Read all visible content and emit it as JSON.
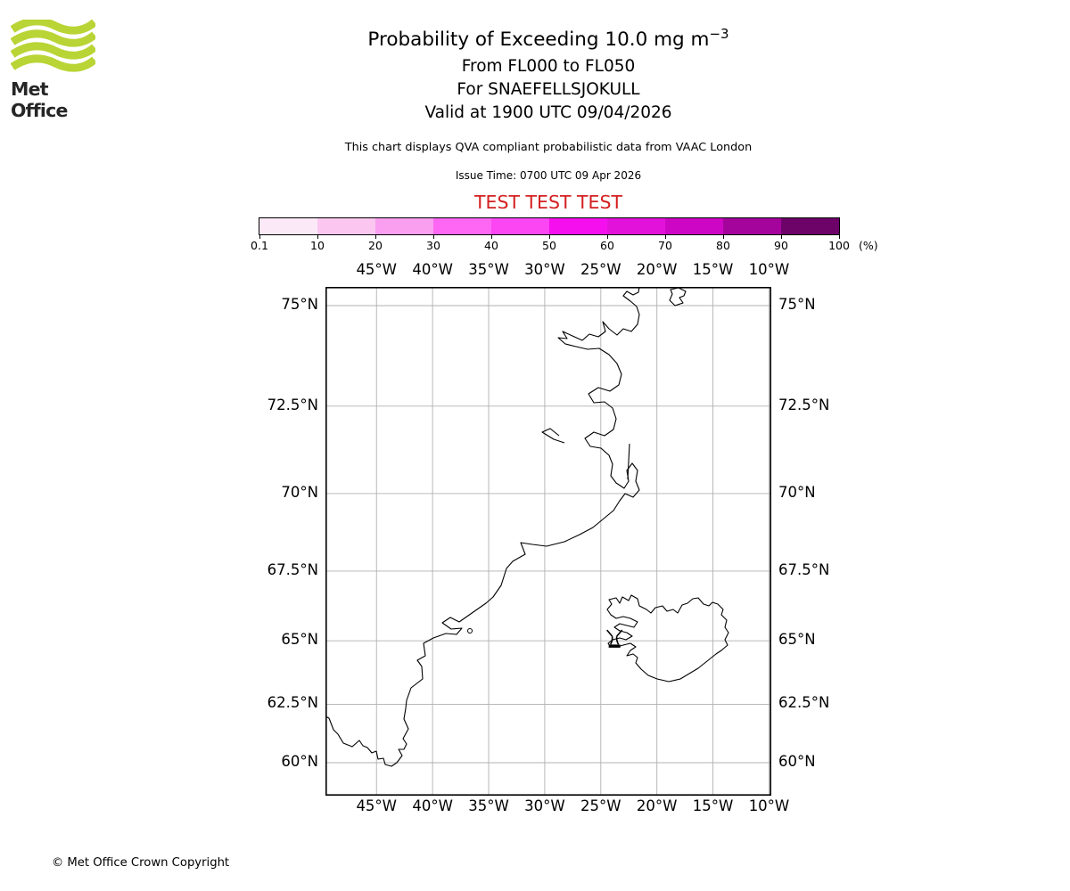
{
  "logo": {
    "text": "Met Office",
    "green": "#b9d435"
  },
  "header": {
    "title": "Probability of Exceeding 10.0 mg m",
    "title_sup": "−3",
    "line1": "From FL000 to FL050",
    "line2": "For SNAEFELLSJOKULL",
    "line3": "Valid at 1900 UTC 09/04/2026",
    "note": "This chart displays QVA compliant probabilistic data from VAAC London",
    "issue": "Issue Time: 0700 UTC 09 Apr 2026",
    "banner": "TEST TEST TEST",
    "banner_color": "#d42021"
  },
  "colorbar": {
    "tick_labels": [
      "0.1",
      "10",
      "20",
      "30",
      "40",
      "50",
      "60",
      "70",
      "80",
      "90",
      "100"
    ],
    "unit": "(%)",
    "segment_colors": [
      "#fce9f8",
      "#fbc7f1",
      "#fa9ef0",
      "#fd67f3",
      "#fc46f4",
      "#f50fee",
      "#e312da",
      "#cd06c6",
      "#a4039c",
      "#6d0269"
    ]
  },
  "map": {
    "lon_ticks": [
      {
        "deg": -45,
        "label": "45°W"
      },
      {
        "deg": -40,
        "label": "40°W"
      },
      {
        "deg": -35,
        "label": "35°W"
      },
      {
        "deg": -30,
        "label": "30°W"
      },
      {
        "deg": -25,
        "label": "25°W"
      },
      {
        "deg": -20,
        "label": "20°W"
      },
      {
        "deg": -15,
        "label": "15°W"
      },
      {
        "deg": -10,
        "label": "10°W"
      }
    ],
    "lat_ticks": [
      {
        "deg": 75,
        "label": "75°N"
      },
      {
        "deg": 72.5,
        "label": "72.5°N"
      },
      {
        "deg": 70,
        "label": "70°N"
      },
      {
        "deg": 67.5,
        "label": "67.5°N"
      },
      {
        "deg": 65,
        "label": "65°N"
      },
      {
        "deg": 62.5,
        "label": "62.5°N"
      },
      {
        "deg": 60,
        "label": "60°N"
      }
    ],
    "volcano_marker": {
      "name": "SNAEFELLSJOKULL",
      "lat": 64.8,
      "lon": -23.78
    }
  },
  "footer": {
    "copyright": "© Met Office Crown Copyright"
  }
}
